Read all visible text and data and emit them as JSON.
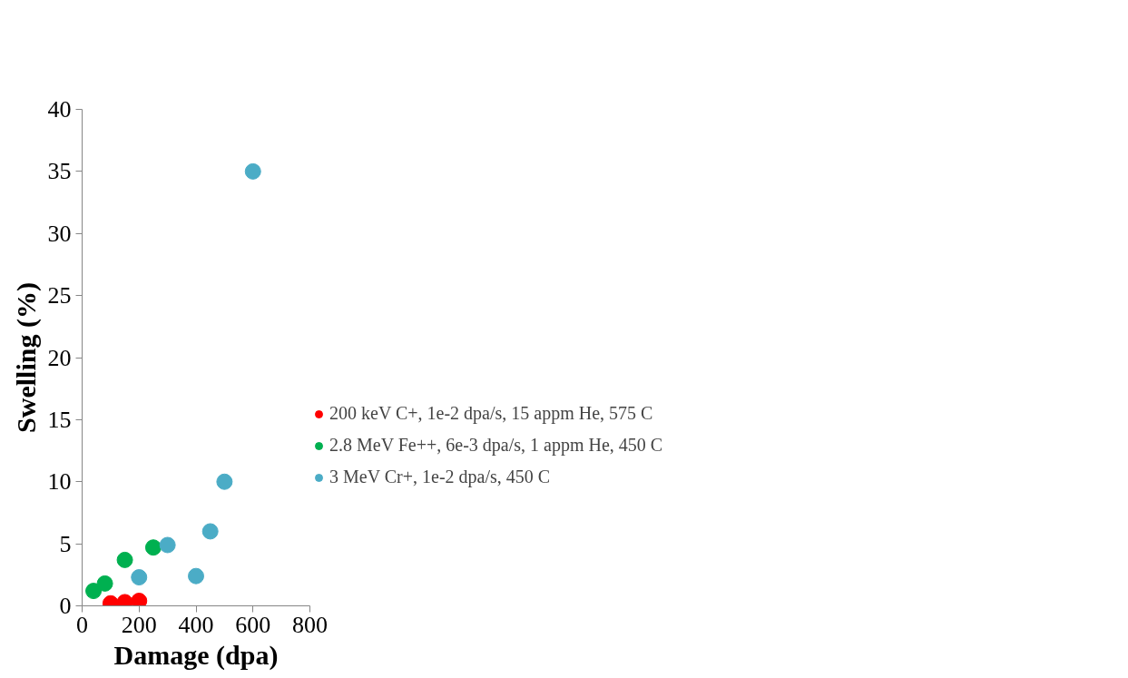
{
  "chart_data": {
    "type": "scatter",
    "xlabel": "Damage (dpa)",
    "ylabel": "Swelling (%)",
    "xlim": [
      0,
      800
    ],
    "xticks": [
      0,
      200,
      400,
      600,
      800
    ],
    "ylim": [
      0,
      40
    ],
    "yticks": [
      0,
      5,
      10,
      15,
      20,
      25,
      30,
      35,
      40
    ],
    "grid": false,
    "legend": "right",
    "marker": "circle",
    "series": [
      {
        "name": "200 keV C+, 1e-2 dpa/s, 15 appm He, 575 C",
        "color": "#ff0000",
        "x": [
          100,
          150,
          200
        ],
        "values": [
          0.2,
          0.3,
          0.4
        ]
      },
      {
        "name": "2.8 MeV Fe++, 6e-3 dpa/s, 1 appm He, 450 C",
        "color": "#00b050",
        "x": [
          40,
          80,
          150,
          250
        ],
        "values": [
          1.2,
          1.8,
          3.7,
          4.7
        ]
      },
      {
        "name": "3 MeV Cr+, 1e-2 dpa/s, 450 C",
        "color": "#4bacc6",
        "x": [
          200,
          300,
          400,
          450,
          500,
          600
        ],
        "values": [
          2.3,
          4.9,
          2.4,
          6.0,
          10,
          35
        ]
      }
    ]
  }
}
